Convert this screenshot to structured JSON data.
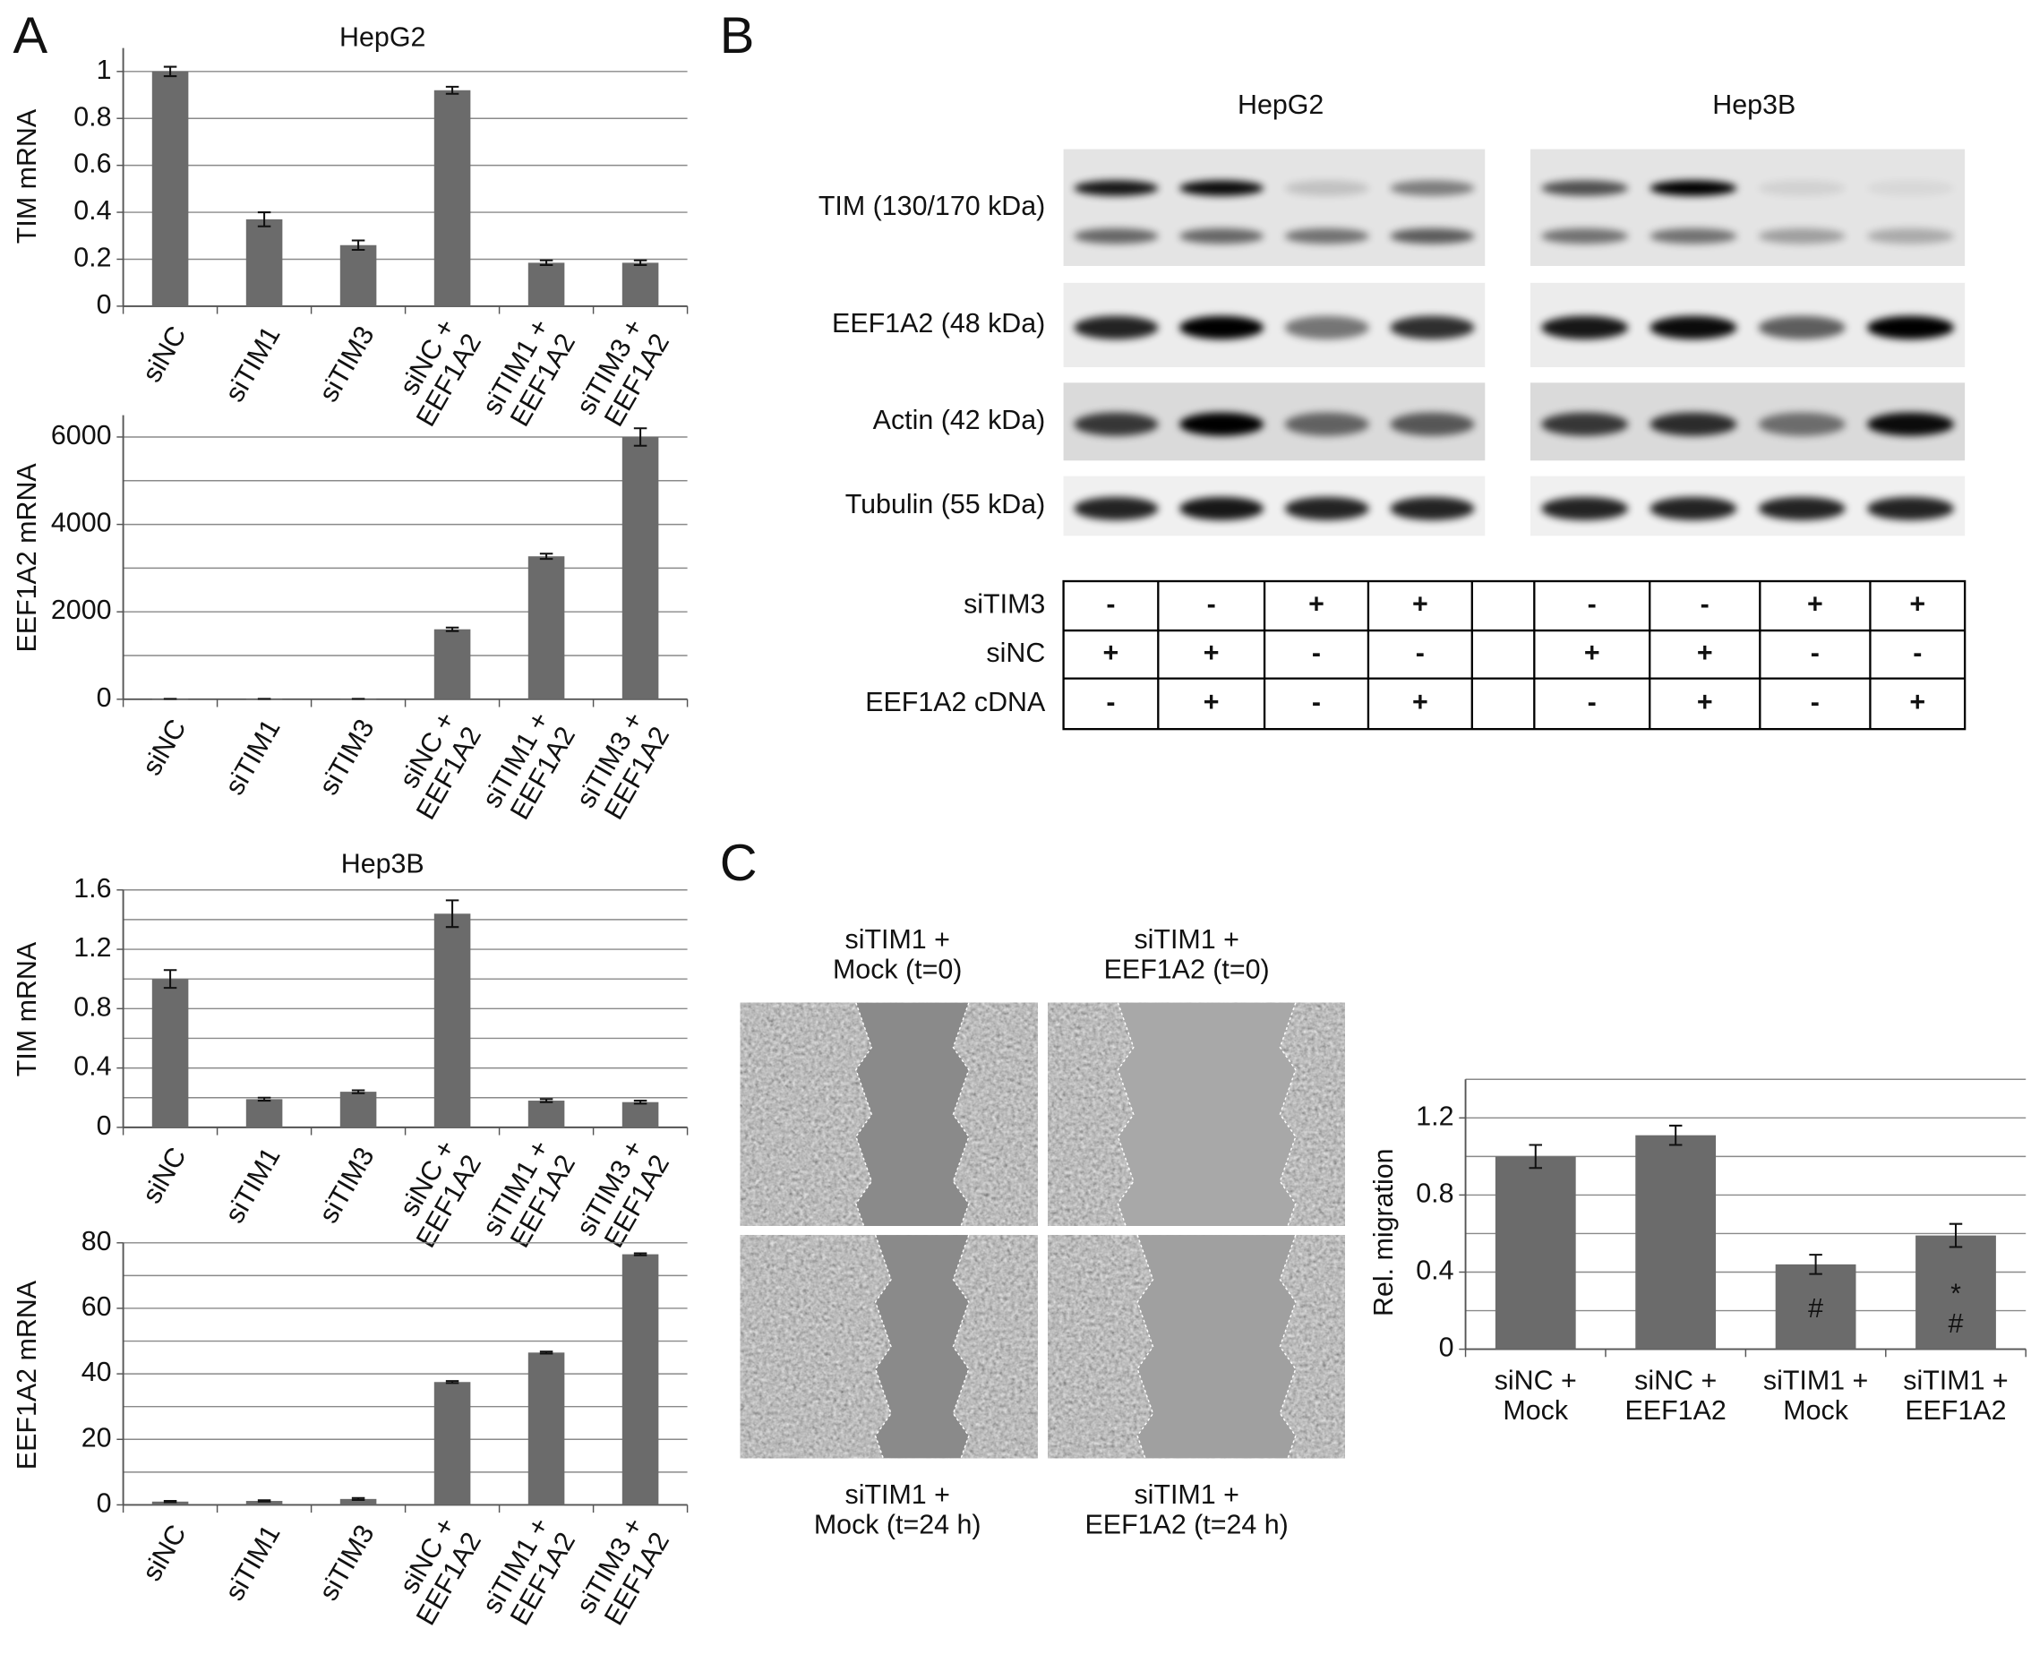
{
  "panel_labels": [
    "A",
    "B",
    "C"
  ],
  "chart_data": [
    {
      "type": "bar",
      "title": "HepG2",
      "ylabel": "TIM mRNA",
      "categories": [
        "siNC",
        "siTIM1",
        "siTIM3",
        "siNC +\nEEF1A2",
        "siTIM1 +\nEEF1A2",
        "siTIM3 +\nEEF1A2"
      ],
      "values": [
        1.0,
        0.37,
        0.26,
        0.92,
        0.185,
        0.185
      ],
      "errors": [
        0.02,
        0.03,
        0.02,
        0.015,
        0.01,
        0.01
      ],
      "ylim": [
        0,
        1.1
      ],
      "yticks": [
        0,
        0.2,
        0.4,
        0.6,
        0.8,
        1
      ],
      "color": "#6b6b6b",
      "grid": true
    },
    {
      "type": "bar",
      "ylabel": "EEF1A2 mRNA",
      "categories": [
        "siNC",
        "siTIM1",
        "siTIM3",
        "siNC +\nEEF1A2",
        "siTIM1 +\nEEF1A2",
        "siTIM3 +\nEEF1A2"
      ],
      "values": [
        8,
        8,
        8,
        1600,
        3270,
        6000
      ],
      "errors": [
        2,
        2,
        2,
        40,
        60,
        200
      ],
      "ylim": [
        0,
        6500
      ],
      "yticks": [
        0,
        2000,
        4000,
        6000
      ],
      "minor_yticks": [
        1000,
        3000,
        5000
      ],
      "color": "#6b6b6b",
      "grid": true
    },
    {
      "type": "bar",
      "title": "Hep3B",
      "ylabel": "TIM mRNA",
      "categories": [
        "siNC",
        "siTIM1",
        "siTIM3",
        "siNC +\nEEF1A2",
        "siTIM1 +\nEEF1A2",
        "siTIM3 +\nEEF1A2"
      ],
      "values": [
        1.0,
        0.19,
        0.24,
        1.44,
        0.18,
        0.17
      ],
      "errors": [
        0.06,
        0.01,
        0.01,
        0.09,
        0.01,
        0.01
      ],
      "ylim": [
        0,
        1.6
      ],
      "yticks": [
        0,
        0.4,
        0.8,
        1.2,
        1.6
      ],
      "minor_yticks": [
        0.2,
        0.6,
        1,
        1.4
      ],
      "color": "#6b6b6b",
      "grid": true
    },
    {
      "type": "bar",
      "ylabel": "EEF1A2 mRNA",
      "categories": [
        "siNC",
        "siTIM1",
        "siTIM3",
        "siNC +\nEEF1A2",
        "siTIM1 +\nEEF1A2",
        "siTIM3 +\nEEF1A2"
      ],
      "values": [
        1,
        1.2,
        1.8,
        37.5,
        46.5,
        76.5
      ],
      "errors": [
        0.2,
        0.2,
        0.3,
        0.3,
        0.3,
        0.3
      ],
      "ylim": [
        0,
        80
      ],
      "yticks": [
        0,
        20,
        40,
        60,
        80
      ],
      "minor_yticks": [
        10,
        30,
        50,
        70
      ],
      "color": "#6b6b6b",
      "grid": true
    },
    {
      "type": "bar",
      "ylabel": "Rel. migration",
      "categories": [
        "siNC +\nMock",
        "siNC +\nEEF1A2",
        "siTIM1 +\nMock",
        "siTIM1 +\nEEF1A2"
      ],
      "values": [
        1.0,
        1.11,
        0.44,
        0.59
      ],
      "errors": [
        0.06,
        0.05,
        0.05,
        0.06
      ],
      "bar_annotations": [
        null,
        null,
        "#",
        "*\n#"
      ],
      "ylim": [
        0,
        1.4
      ],
      "yticks": [
        0,
        0.4,
        0.8,
        1.2
      ],
      "minor_yticks": [
        0.2,
        0.6,
        1,
        1.4
      ],
      "color": "#6b6b6b",
      "grid": true
    }
  ],
  "blot": {
    "cell_lines": [
      "HepG2",
      "Hep3B"
    ],
    "proteins": [
      "TIM (130/170 kDa)",
      "EEF1A2 (48 kDa)",
      "Actin (42 kDa)",
      "Tubulin (55 kDa)"
    ]
  },
  "treatment_table": {
    "rows": [
      {
        "label": "siTIM3",
        "cells": [
          "-",
          "-",
          "+",
          "+",
          "-",
          "-",
          "+",
          "+"
        ]
      },
      {
        "label": "siNC",
        "cells": [
          "+",
          "+",
          "-",
          "-",
          "+",
          "+",
          "-",
          "-"
        ]
      },
      {
        "label": "EEF1A2 cDNA",
        "cells": [
          "-",
          "+",
          "-",
          "+",
          "-",
          "+",
          "-",
          "+"
        ]
      }
    ]
  },
  "micrographs": {
    "top_labels": [
      "siTIM1 +\nMock (t=0)",
      "siTIM1 +\nEEF1A2 (t=0)"
    ],
    "bottom_labels": [
      "siTIM1 +\nMock (t=24 h)",
      "siTIM1 +\nEEF1A2 (t=24 h)"
    ]
  }
}
